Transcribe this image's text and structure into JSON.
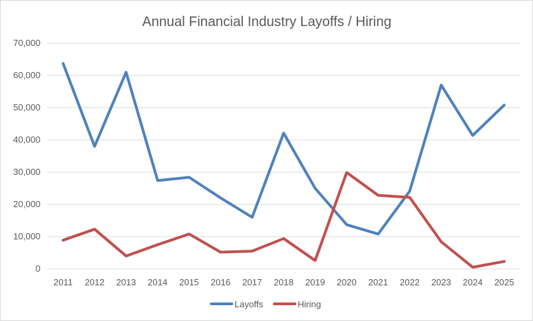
{
  "chart_data": {
    "type": "line",
    "title": "Annual Financial Industry Layoffs / Hiring",
    "categories": [
      "2011",
      "2012",
      "2013",
      "2014",
      "2015",
      "2016",
      "2017",
      "2018",
      "2019",
      "2020",
      "2021",
      "2022",
      "2023",
      "2024",
      "2025"
    ],
    "y_tick_labels": [
      "0",
      "10,000",
      "20,000",
      "30,000",
      "40,000",
      "50,000",
      "60,000",
      "70,000"
    ],
    "ylim": [
      0,
      70000
    ],
    "grid": true,
    "legend_position": "bottom",
    "series": [
      {
        "name": "Layoffs",
        "color": "#4f81bd",
        "values": [
          63700,
          38000,
          61000,
          27400,
          28400,
          22000,
          16000,
          42100,
          25000,
          13700,
          10800,
          24100,
          57000,
          41400,
          50800
        ]
      },
      {
        "name": "Hiring",
        "color": "#c0504d",
        "values": [
          8900,
          12300,
          4000,
          7500,
          10800,
          5200,
          5500,
          9400,
          2600,
          29900,
          22800,
          22200,
          8400,
          500,
          2300
        ]
      }
    ]
  }
}
